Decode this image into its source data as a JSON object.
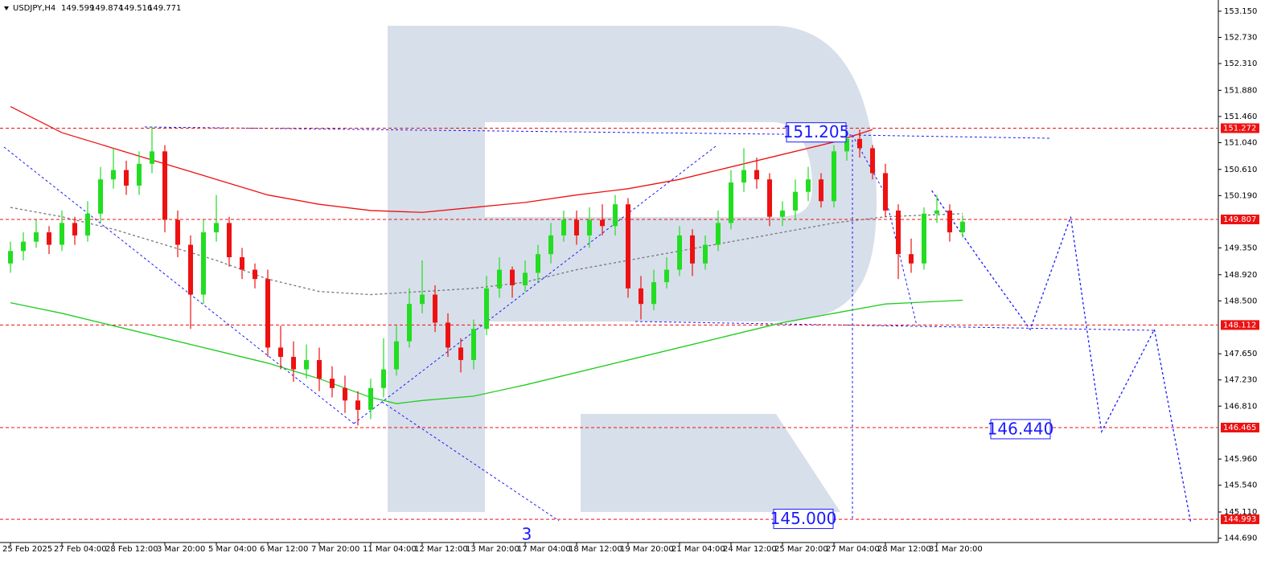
{
  "chart_data": {
    "type": "candlestick",
    "title": "USDJPY,H4",
    "up_color": "#22dd22",
    "down_color": "#ee1111",
    "categories": [
      "25 Feb 2025",
      null,
      null,
      null,
      "27 Feb 04:00",
      null,
      null,
      null,
      "28 Feb 12:00",
      null,
      null,
      null,
      "3 Mar 20:00",
      null,
      null,
      null,
      "5 Mar 04:00",
      null,
      null,
      null,
      "6 Mar 12:00",
      null,
      null,
      null,
      "7 Mar 20:00",
      null,
      null,
      null,
      "11 Mar 04:00",
      null,
      null,
      null,
      "12 Mar 12:00",
      null,
      null,
      null,
      "13 Mar 20:00",
      null,
      null,
      null,
      "17 Mar 04:00",
      null,
      null,
      null,
      "18 Mar 12:00",
      null,
      null,
      null,
      "19 Mar 20:00",
      null,
      null,
      null,
      "21 Mar 04:00",
      null,
      null,
      null,
      "24 Mar 12:00",
      null,
      null,
      null,
      "25 Mar 20:00",
      null,
      null,
      null,
      "27 Mar 04:00",
      null,
      null,
      null,
      "28 Mar 12:00",
      null,
      null,
      null,
      "31 Mar 20:00",
      null,
      null
    ],
    "open": [
      149.1,
      149.3,
      149.45,
      149.6,
      149.4,
      149.75,
      149.55,
      149.9,
      150.45,
      150.6,
      150.35,
      150.7,
      150.9,
      149.8,
      149.4,
      148.6,
      149.6,
      149.75,
      149.2,
      149.0,
      148.85,
      147.75,
      147.6,
      147.4,
      147.55,
      147.25,
      147.1,
      146.9,
      146.75,
      147.1,
      147.4,
      147.85,
      148.45,
      148.6,
      148.15,
      147.75,
      147.55,
      148.05,
      148.7,
      149.0,
      148.75,
      148.95,
      149.25,
      149.55,
      149.8,
      149.55,
      149.8,
      149.7,
      150.05,
      148.7,
      148.45,
      148.8,
      149.0,
      149.55,
      149.1,
      149.4,
      149.75,
      150.4,
      150.6,
      150.45,
      149.85,
      149.95,
      150.25,
      150.45,
      150.1,
      150.9,
      151.1,
      150.95,
      150.55,
      149.95,
      149.25,
      149.1,
      149.9,
      149.95,
      149.599
    ],
    "high": [
      149.45,
      149.6,
      149.8,
      149.7,
      149.95,
      149.85,
      150.1,
      150.65,
      150.95,
      150.75,
      150.9,
      151.3,
      151.0,
      149.95,
      149.55,
      149.8,
      150.2,
      149.85,
      149.35,
      149.1,
      149.0,
      148.1,
      147.85,
      147.8,
      147.75,
      147.45,
      147.3,
      147.05,
      147.25,
      147.9,
      148.1,
      148.7,
      149.15,
      148.75,
      148.3,
      147.9,
      148.2,
      148.9,
      149.2,
      149.05,
      149.15,
      149.4,
      149.75,
      149.95,
      149.95,
      150.0,
      150.05,
      150.2,
      150.15,
      148.9,
      149.0,
      149.2,
      149.7,
      149.65,
      149.55,
      149.95,
      150.6,
      150.95,
      150.8,
      150.55,
      150.1,
      150.45,
      150.65,
      150.55,
      151.0,
      151.2,
      151.25,
      151.0,
      150.7,
      150.05,
      149.5,
      150.0,
      150.2,
      150.05,
      149.874
    ],
    "low": [
      148.95,
      149.15,
      149.35,
      149.25,
      149.3,
      149.4,
      149.45,
      149.75,
      150.3,
      150.2,
      150.2,
      150.55,
      149.6,
      149.2,
      148.05,
      148.45,
      149.45,
      149.05,
      148.85,
      148.7,
      147.6,
      147.4,
      147.2,
      147.25,
      147.05,
      146.95,
      146.7,
      146.5,
      146.6,
      146.95,
      147.3,
      147.75,
      148.3,
      148.0,
      147.6,
      147.35,
      147.4,
      147.95,
      148.55,
      148.55,
      148.65,
      148.8,
      149.1,
      149.45,
      149.4,
      149.35,
      149.55,
      149.55,
      148.55,
      148.2,
      148.35,
      148.7,
      148.9,
      148.9,
      149.0,
      149.3,
      149.65,
      150.25,
      150.3,
      149.7,
      149.7,
      149.8,
      150.1,
      150.0,
      150.0,
      150.75,
      150.8,
      150.45,
      149.85,
      148.85,
      148.95,
      149.0,
      149.75,
      149.45,
      149.516
    ],
    "close": [
      149.3,
      149.45,
      149.6,
      149.4,
      149.75,
      149.55,
      149.9,
      150.45,
      150.6,
      150.35,
      150.7,
      150.9,
      149.8,
      149.4,
      148.6,
      149.6,
      149.75,
      149.2,
      149.0,
      148.85,
      147.75,
      147.6,
      147.4,
      147.55,
      147.25,
      147.1,
      146.9,
      146.75,
      147.1,
      147.4,
      147.85,
      148.45,
      148.6,
      148.15,
      147.75,
      147.55,
      148.05,
      148.7,
      149.0,
      148.75,
      148.95,
      149.25,
      149.55,
      149.8,
      149.55,
      149.8,
      149.7,
      150.05,
      148.7,
      148.45,
      148.8,
      149.0,
      149.55,
      149.1,
      149.4,
      149.75,
      150.4,
      150.6,
      150.45,
      149.85,
      149.95,
      150.25,
      150.45,
      150.1,
      150.9,
      151.1,
      150.95,
      150.55,
      149.95,
      149.25,
      149.1,
      149.9,
      149.95,
      149.6,
      149.771
    ],
    "ylim": [
      144.62,
      153.33
    ],
    "yticks": [
      {
        "value": 153.15,
        "label": "153.150"
      },
      {
        "value": 152.73,
        "label": "152.730"
      },
      {
        "value": 152.31,
        "label": "152.310"
      },
      {
        "value": 151.88,
        "label": "151.880"
      },
      {
        "value": 151.46,
        "label": "151.460"
      },
      {
        "value": 151.04,
        "label": "151.040"
      },
      {
        "value": 150.61,
        "label": "150.610"
      },
      {
        "value": 150.19,
        "label": "150.190"
      },
      {
        "value": 149.35,
        "label": "149.350"
      },
      {
        "value": 148.92,
        "label": "148.920"
      },
      {
        "value": 148.5,
        "label": "148.500"
      },
      {
        "value": 147.65,
        "label": "147.650"
      },
      {
        "value": 147.23,
        "label": "147.230"
      },
      {
        "value": 146.81,
        "label": "146.810"
      },
      {
        "value": 145.96,
        "label": "145.960"
      },
      {
        "value": 145.54,
        "label": "145.540"
      },
      {
        "value": 145.11,
        "label": "145.110"
      },
      {
        "value": 144.69,
        "label": "144.690"
      }
    ],
    "overlays": [
      {
        "color": "#ee1111",
        "dash": false,
        "x": [
          0,
          4,
          8,
          12,
          16,
          20,
          24,
          28,
          32,
          36,
          40,
          44,
          48,
          52,
          56,
          60,
          64,
          67
        ],
        "values": [
          151.62,
          151.2,
          150.95,
          150.7,
          150.45,
          150.2,
          150.05,
          149.95,
          149.92,
          150.0,
          150.08,
          150.2,
          150.3,
          150.45,
          150.65,
          150.85,
          151.05,
          151.25
        ]
      },
      {
        "color": "#777777",
        "dash": true,
        "x": [
          0,
          4,
          8,
          12,
          16,
          20,
          24,
          28,
          32,
          36,
          40,
          44,
          48,
          52,
          56,
          60,
          64,
          68,
          74
        ],
        "values": [
          150.0,
          149.85,
          149.65,
          149.4,
          149.15,
          148.85,
          148.65,
          148.6,
          148.65,
          148.7,
          148.8,
          149.0,
          149.15,
          149.3,
          149.45,
          149.6,
          149.75,
          149.85,
          149.9
        ]
      },
      {
        "color": "#22cc22",
        "dash": false,
        "x": [
          0,
          4,
          8,
          12,
          16,
          20,
          24,
          28,
          30,
          32,
          36,
          40,
          44,
          48,
          52,
          56,
          60,
          64,
          68,
          74
        ],
        "values": [
          148.47,
          148.3,
          148.1,
          147.9,
          147.7,
          147.5,
          147.25,
          146.95,
          146.85,
          146.9,
          146.97,
          147.15,
          147.35,
          147.55,
          147.75,
          147.95,
          148.15,
          148.3,
          148.45,
          148.51
        ]
      },
      {
        "color": "#1a1aff",
        "dash": true,
        "x": [
          71.6,
          75.3,
          79.25,
          82.4,
          84.8,
          88.9,
          91.75
        ],
        "values": [
          150.27,
          149.17,
          148.04,
          149.85,
          146.4,
          148.04,
          144.92
        ]
      }
    ],
    "price_levels": [
      151.272,
      149.807,
      148.112,
      146.465,
      144.993
    ],
    "level_color": "#ee1111",
    "annotations": [
      {
        "value": 151.205,
        "label": "151.205"
      },
      {
        "value": 146.44,
        "label": "146.440"
      },
      {
        "value": 145,
        "label": "145.000"
      }
    ],
    "wave_label": "3"
  }
}
